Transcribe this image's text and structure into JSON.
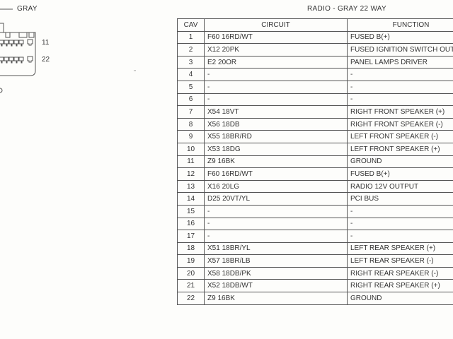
{
  "connector": {
    "color_label": "GRAY",
    "pin_labels": [
      "11",
      "22"
    ]
  },
  "table": {
    "title": "RADIO - GRAY 22 WAY",
    "headers": [
      "CAV",
      "CIRCUIT",
      "FUNCTION"
    ],
    "rows": [
      {
        "cav": "1",
        "circuit": "F60 16RD/WT",
        "function": "FUSED B(+)"
      },
      {
        "cav": "2",
        "circuit": "X12 20PK",
        "function": "FUSED IGNITION SWITCH OUTPUT"
      },
      {
        "cav": "3",
        "circuit": "E2 20OR",
        "function": "PANEL LAMPS DRIVER"
      },
      {
        "cav": "4",
        "circuit": "-",
        "function": "-"
      },
      {
        "cav": "5",
        "circuit": "-",
        "function": "-"
      },
      {
        "cav": "6",
        "circuit": "-",
        "function": "-"
      },
      {
        "cav": "7",
        "circuit": "X54 18VT",
        "function": "RIGHT FRONT SPEAKER (+)"
      },
      {
        "cav": "8",
        "circuit": "X56 18DB",
        "function": "RIGHT FRONT SPEAKER (-)"
      },
      {
        "cav": "9",
        "circuit": "X55 18BR/RD",
        "function": "LEFT FRONT SPEAKER (-)"
      },
      {
        "cav": "10",
        "circuit": "X53 18DG",
        "function": "LEFT FRONT SPEAKER (+)"
      },
      {
        "cav": "11",
        "circuit": "Z9 16BK",
        "function": "GROUND"
      },
      {
        "cav": "12",
        "circuit": "F60 16RD/WT",
        "function": "FUSED B(+)"
      },
      {
        "cav": "13",
        "circuit": "X16 20LG",
        "function": "RADIO 12V OUTPUT"
      },
      {
        "cav": "14",
        "circuit": "D25 20VT/YL",
        "function": "PCI BUS"
      },
      {
        "cav": "15",
        "circuit": "-",
        "function": "-"
      },
      {
        "cav": "16",
        "circuit": "-",
        "function": "-"
      },
      {
        "cav": "17",
        "circuit": "-",
        "function": "-"
      },
      {
        "cav": "18",
        "circuit": "X51 18BR/YL",
        "function": "LEFT REAR SPEAKER (+)"
      },
      {
        "cav": "19",
        "circuit": "X57 18BR/LB",
        "function": "LEFT REAR SPEAKER (-)"
      },
      {
        "cav": "20",
        "circuit": "X58 18DB/PK",
        "function": "RIGHT REAR SPEAKER (-)"
      },
      {
        "cav": "21",
        "circuit": "X52 18DB/WT",
        "function": "RIGHT REAR SPEAKER (+)"
      },
      {
        "cav": "22",
        "circuit": "Z9 16BK",
        "function": "GROUND"
      }
    ]
  }
}
